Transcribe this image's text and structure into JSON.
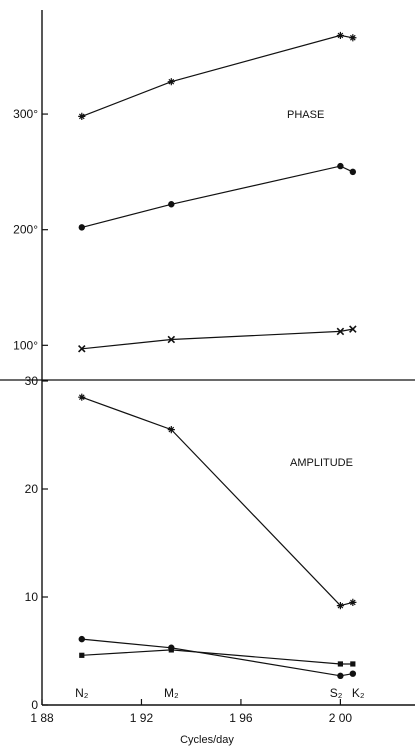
{
  "chart_data": [
    {
      "type": "line",
      "panel": "phase",
      "title": "PHASE",
      "xlim": [
        1.88,
        2.03
      ],
      "ylim": [
        70,
        390
      ],
      "y_ticks": [
        {
          "value": 100,
          "label": "100°"
        },
        {
          "value": 200,
          "label": "200°"
        },
        {
          "value": 300,
          "label": "300°"
        }
      ],
      "series": [
        {
          "marker": "plus",
          "x": [
            1.896,
            1.932,
            2.0,
            2.005
          ],
          "y": [
            298,
            328,
            368,
            366
          ]
        },
        {
          "marker": "dot",
          "x": [
            1.896,
            1.932,
            2.0,
            2.005
          ],
          "y": [
            202,
            222,
            255,
            250
          ]
        },
        {
          "marker": "cross",
          "x": [
            1.896,
            1.932,
            2.0,
            2.005
          ],
          "y": [
            97,
            105,
            112,
            114
          ]
        }
      ]
    },
    {
      "type": "line",
      "panel": "amplitude",
      "title": "AMPLITUDE",
      "xlabel": "Cycles/day",
      "xlim": [
        1.88,
        2.03
      ],
      "ylim": [
        0,
        30
      ],
      "x_ticks": [
        {
          "value": 1.88,
          "label": "1 88"
        },
        {
          "value": 1.92,
          "label": "1 92"
        },
        {
          "value": 1.96,
          "label": "1 96"
        },
        {
          "value": 2.0,
          "label": "2 00"
        }
      ],
      "y_ticks": [
        {
          "value": 0,
          "label": "0"
        },
        {
          "value": 10,
          "label": "10"
        },
        {
          "value": 20,
          "label": "20"
        },
        {
          "value": 30,
          "label": "30"
        }
      ],
      "constituents": [
        {
          "name": "N₂",
          "x": 1.896
        },
        {
          "name": "M₂",
          "x": 1.932
        },
        {
          "name": "S₂",
          "x": 2.0
        },
        {
          "name": "K₂",
          "x": 2.005
        }
      ],
      "series": [
        {
          "marker": "plus",
          "x": [
            1.896,
            1.932,
            2.0,
            2.005
          ],
          "y": [
            28.5,
            25.5,
            9.2,
            9.5
          ]
        },
        {
          "marker": "dot",
          "x": [
            1.896,
            1.932,
            2.0,
            2.005
          ],
          "y": [
            6.1,
            5.3,
            2.7,
            2.9
          ]
        },
        {
          "marker": "square",
          "x": [
            1.896,
            1.932,
            2.0,
            2.005
          ],
          "y": [
            4.6,
            5.1,
            3.8,
            3.8
          ]
        }
      ]
    }
  ]
}
